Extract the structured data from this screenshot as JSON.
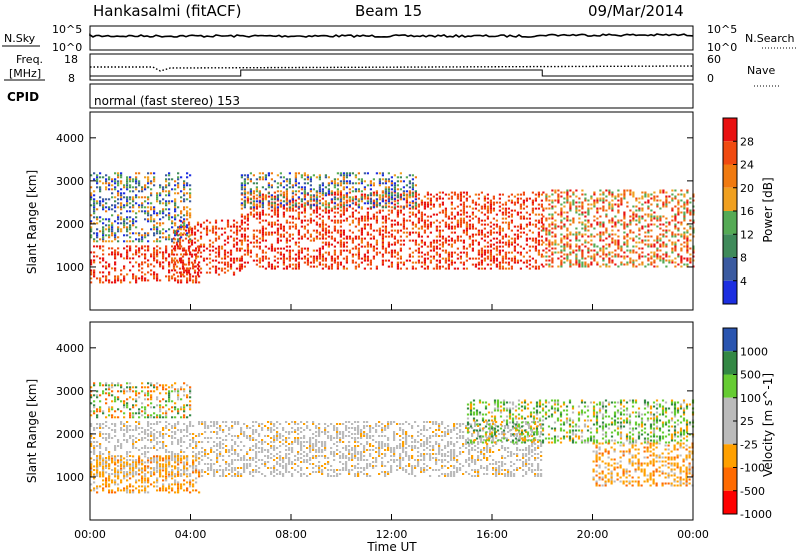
{
  "header": {
    "station": "Hankasalmi (fitACF)",
    "beam": "Beam 15",
    "date": "09/Mar/2014"
  },
  "noise_panel": {
    "left_label": "N.Sky",
    "left_ticks": [
      "10^5",
      "10^0"
    ],
    "right_label": "N.Search",
    "right_ticks": [
      "10^5",
      "10^0"
    ]
  },
  "freq_panel": {
    "left_label_line1": "Freq.",
    "left_label_line2": "[MHz]",
    "left_ticks": [
      "18",
      "8"
    ],
    "right_label": "Nave",
    "right_ticks": [
      "60",
      "0"
    ]
  },
  "cpid": {
    "label": "CPID",
    "mode_text": "normal (fast stereo) 153",
    "mode_changes_hours": [
      6.0,
      18.0
    ]
  },
  "colors": {
    "power_scale": [
      "#1c2ee0",
      "#3a5aa0",
      "#3f8a5a",
      "#55aa55",
      "#f0a020",
      "#f07a10",
      "#f04a10",
      "#e81010"
    ],
    "velocity_scale": [
      "#ff0000",
      "#ff6a00",
      "#ffa000",
      "#bbbbbb",
      "#bbbbbb",
      "#66cc33",
      "#338844",
      "#2a55b0"
    ]
  },
  "chart_data": [
    {
      "type": "heatmap",
      "panel": "power",
      "ylabel": "Slant Range [km]",
      "xlim_hours": [
        0,
        24
      ],
      "ylim_km": [
        0,
        4600
      ],
      "yticks": [
        "1000",
        "2000",
        "3000",
        "4000"
      ],
      "colorbar_label": "Power [dB]",
      "colorbar_ticks": [
        "4",
        "8",
        "12",
        "16",
        "20",
        "24",
        "28"
      ],
      "colorbar_range": [
        0,
        32
      ],
      "scatter_regions": [
        {
          "hours": [
            0.0,
            4.3
          ],
          "km": [
            620,
            1500
          ],
          "level": "high"
        },
        {
          "hours": [
            3.3,
            6.0
          ],
          "km": [
            800,
            2100
          ],
          "level": "high"
        },
        {
          "hours": [
            6.0,
            18.0
          ],
          "km": [
            950,
            2750
          ],
          "level": "high"
        },
        {
          "hours": [
            18.0,
            24.0
          ],
          "km": [
            1000,
            2800
          ],
          "level": "mid"
        },
        {
          "hours": [
            0.0,
            4.0
          ],
          "km": [
            1600,
            3200
          ],
          "level": "low"
        },
        {
          "hours": [
            6.0,
            13.0
          ],
          "km": [
            2400,
            3200
          ],
          "level": "low"
        }
      ]
    },
    {
      "type": "heatmap",
      "panel": "velocity",
      "ylabel": "Slant Range [km]",
      "xlabel": "Time UT",
      "xlim_hours": [
        0,
        24
      ],
      "ylim_km": [
        0,
        4600
      ],
      "yticks": [
        "1000",
        "2000",
        "3000",
        "4000"
      ],
      "xticks": [
        "00:00",
        "04:00",
        "08:00",
        "12:00",
        "16:00",
        "20:00",
        "00:00"
      ],
      "colorbar_label": "Velocity [m s^-1]",
      "colorbar_ticks": [
        "1000",
        "500",
        "100",
        "25",
        "-25",
        "-100",
        "-500",
        "-1000"
      ],
      "scatter_regions": [
        {
          "hours": [
            0.0,
            18.0
          ],
          "km": [
            1000,
            2300
          ],
          "level": "zero"
        },
        {
          "hours": [
            0.0,
            4.3
          ],
          "km": [
            620,
            1500
          ],
          "level": "away"
        },
        {
          "hours": [
            0.0,
            4.0
          ],
          "km": [
            2400,
            3200
          ],
          "level": "mixed"
        },
        {
          "hours": [
            15.0,
            24.0
          ],
          "km": [
            1800,
            2800
          ],
          "level": "toward"
        },
        {
          "hours": [
            20.0,
            24.0
          ],
          "km": [
            800,
            1800
          ],
          "level": "away"
        }
      ]
    }
  ]
}
